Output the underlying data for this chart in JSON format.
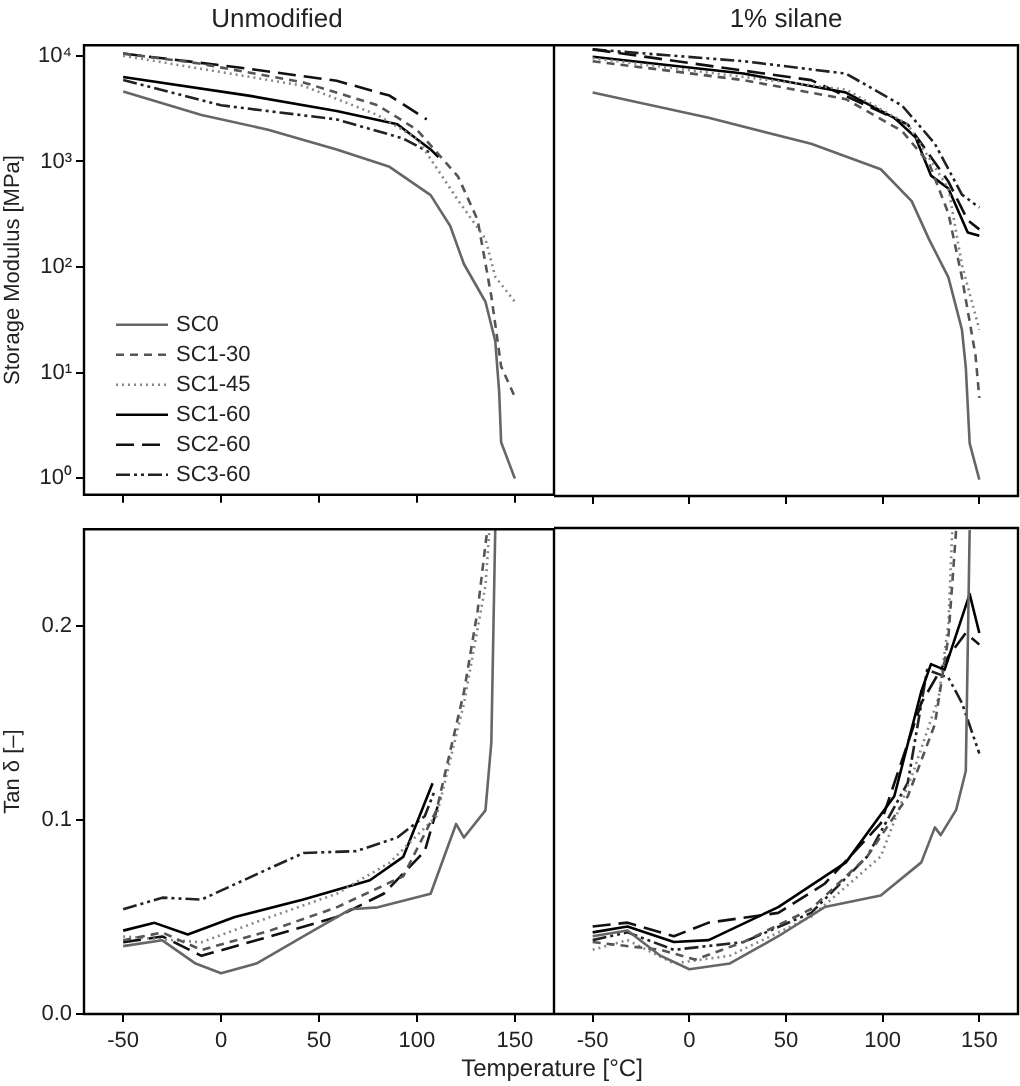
{
  "chart_data": [
    {
      "type": "line",
      "title": "Unmodified",
      "ylabel": "Storage Modulus [MPa]",
      "log": "y",
      "xlim": [
        -70,
        170
      ],
      "xticks": [
        -50,
        0,
        50,
        100,
        150
      ],
      "ylim": [
        0.7,
        12600
      ],
      "yticks": [
        {
          "value": 1,
          "label": "10⁰"
        },
        {
          "value": 10,
          "label": "10¹"
        },
        {
          "value": 100,
          "label": "10²"
        },
        {
          "value": 1000,
          "label": "10³"
        },
        {
          "value": 10000,
          "label": "10⁴"
        }
      ],
      "tick_labels": "y",
      "legend": "bottom left",
      "series": [
        {
          "name": "SC0",
          "color": "#666666",
          "line_style": "solid",
          "x": [
            -50,
            -10,
            24,
            59,
            86,
            107,
            117,
            124,
            135,
            140,
            142,
            143,
            150
          ],
          "values": [
            4600,
            2750,
            2000,
            1300,
            890,
            480,
            245,
            107,
            47,
            20,
            6.6,
            2.2,
            1.0
          ]
        },
        {
          "name": "SC1-30",
          "color": "#555555",
          "line_style": "dashed",
          "x": [
            -50,
            -12,
            42,
            80,
            100,
            121,
            131,
            138,
            143,
            150
          ],
          "values": [
            10500,
            8500,
            5600,
            3400,
            2000,
            720,
            280,
            53,
            11.5,
            5.9
          ]
        },
        {
          "name": "SC1-45",
          "color": "#888888",
          "line_style": "dotted",
          "x": [
            -50,
            42,
            80,
            100,
            121,
            135,
            140,
            150
          ],
          "values": [
            10000,
            5200,
            2750,
            1650,
            430,
            185,
            81,
            47
          ]
        },
        {
          "name": "SC1-60",
          "color": "#000000",
          "line_style": "solid",
          "x": [
            -50,
            14,
            59,
            90,
            107,
            111
          ],
          "values": [
            6300,
            4200,
            3000,
            2250,
            1300,
            1100
          ]
        },
        {
          "name": "SC2-60",
          "color": "#111111",
          "line_style": "dashed",
          "x": [
            -50,
            8,
            59,
            86,
            105
          ],
          "values": [
            10500,
            7800,
            5800,
            4200,
            2500
          ]
        },
        {
          "name": "SC3-60",
          "color": "#222222",
          "line_style": "dashed",
          "x": [
            -50,
            0,
            59,
            93,
            107
          ],
          "values": [
            5900,
            3400,
            2500,
            1650,
            1200
          ]
        }
      ]
    },
    {
      "type": "line",
      "title": "1% silane",
      "log": "y",
      "xlim": [
        -70,
        170
      ],
      "xticks": [
        -50,
        0,
        50,
        100,
        150
      ],
      "ylim": [
        0.7,
        12600
      ],
      "yticks": [
        {
          "value": 1,
          "label": null
        },
        {
          "value": 10,
          "label": null
        },
        {
          "value": 100,
          "label": null
        },
        {
          "value": 1000,
          "label": null
        },
        {
          "value": 10000,
          "label": null
        }
      ],
      "tick_labels": false,
      "series": [
        {
          "color": "#666666",
          "line_style": "solid",
          "x": [
            -50,
            10,
            63,
            99,
            115,
            124,
            134,
            141,
            143,
            145,
            150
          ],
          "values": [
            4500,
            2600,
            1480,
            850,
            425,
            185,
            81,
            26,
            11.5,
            2.2,
            1.0
          ]
        },
        {
          "color": "#555555",
          "line_style": "dashed",
          "x": [
            -50,
            28,
            81,
            110,
            124,
            134,
            141,
            148,
            150
          ],
          "values": [
            8900,
            5900,
            3900,
            1950,
            970,
            325,
            81,
            15,
            5.9
          ]
        },
        {
          "color": "#888888",
          "line_style": "dotted",
          "x": [
            -50,
            81,
            113,
            134,
            141,
            150
          ],
          "values": [
            9500,
            4800,
            2250,
            560,
            107,
            26
          ]
        },
        {
          "color": "#000000",
          "line_style": "solid",
          "x": [
            -50,
            28,
            81,
            106,
            117,
            125,
            134,
            144,
            150
          ],
          "values": [
            9800,
            6800,
            4500,
            2600,
            1700,
            740,
            560,
            215,
            200
          ]
        },
        {
          "color": "#111111",
          "line_style": "dashed",
          "x": [
            -50,
            63,
            113,
            134,
            144,
            150
          ],
          "values": [
            11500,
            5900,
            2250,
            650,
            280,
            230
          ]
        },
        {
          "color": "#222222",
          "line_style": "dashed",
          "x": [
            -50,
            28,
            81,
            110,
            127,
            141,
            150
          ],
          "values": [
            11500,
            8900,
            6800,
            3400,
            1480,
            490,
            370
          ]
        }
      ]
    },
    {
      "type": "line",
      "xlabel": "Temperature [°C]",
      "ylabel": "Tan δ [–]",
      "xlim": [
        -70,
        170
      ],
      "xticks": [
        -50,
        0,
        50,
        100,
        150
      ],
      "ylim": [
        0,
        0.25
      ],
      "yticks": [
        {
          "value": 0,
          "label": "0.0"
        },
        0.1,
        0.2
      ],
      "series": [
        {
          "color": "#666666",
          "line_style": "solid",
          "x": [
            -50,
            -30,
            -13,
            0,
            18,
            42,
            66,
            80,
            107,
            120,
            124,
            135,
            138,
            140
          ],
          "values": [
            0.035,
            0.038,
            0.026,
            0.021,
            0.026,
            0.04,
            0.054,
            0.055,
            0.062,
            0.098,
            0.091,
            0.105,
            0.14,
            0.25
          ]
        },
        {
          "color": "#555555",
          "line_style": "dashed",
          "x": [
            -50,
            -30,
            -10,
            25,
            59,
            93,
            110,
            124,
            131,
            135,
            136
          ],
          "values": [
            0.038,
            0.042,
            0.033,
            0.043,
            0.055,
            0.071,
            0.105,
            0.166,
            0.208,
            0.242,
            0.25
          ]
        },
        {
          "color": "#888888",
          "line_style": "dotted",
          "x": [
            -50,
            -10,
            25,
            59,
            86,
            110,
            124,
            135,
            137
          ],
          "values": [
            0.04,
            0.037,
            0.05,
            0.062,
            0.078,
            0.102,
            0.16,
            0.221,
            0.249
          ]
        },
        {
          "color": "#000000",
          "line_style": "solid",
          "x": [
            -50,
            -34,
            -17,
            7,
            42,
            76,
            93,
            108
          ],
          "values": [
            0.043,
            0.047,
            0.041,
            0.05,
            0.059,
            0.069,
            0.081,
            0.119
          ]
        },
        {
          "color": "#111111",
          "line_style": "dashed",
          "x": [
            -50,
            -30,
            -10,
            25,
            59,
            83,
            104,
            112
          ],
          "values": [
            0.037,
            0.04,
            0.03,
            0.04,
            0.05,
            0.062,
            0.084,
            0.112
          ]
        },
        {
          "color": "#222222",
          "line_style": "dashed",
          "x": [
            -50,
            -30,
            -10,
            18,
            42,
            69,
            90,
            104,
            109
          ],
          "values": [
            0.054,
            0.06,
            0.059,
            0.072,
            0.083,
            0.084,
            0.091,
            0.102,
            0.115
          ]
        }
      ]
    },
    {
      "type": "line",
      "xlim": [
        -70,
        170
      ],
      "xticks": [
        -50,
        0,
        50,
        100,
        150
      ],
      "ylim": [
        0,
        0.25
      ],
      "yticks": [
        0.0,
        0.1,
        0.2
      ],
      "tick_labels": "x",
      "series": [
        {
          "color": "#666666",
          "line_style": "solid",
          "x": [
            -50,
            -32,
            -15,
            0,
            21,
            46,
            70,
            99,
            120,
            127,
            130,
            138,
            143,
            145
          ],
          "values": [
            0.04,
            0.043,
            0.03,
            0.023,
            0.026,
            0.04,
            0.055,
            0.061,
            0.078,
            0.096,
            0.092,
            0.105,
            0.125,
            0.249
          ]
        },
        {
          "color": "#555555",
          "line_style": "dashed",
          "x": [
            -50,
            -15,
            3,
            28,
            63,
            92,
            113,
            127,
            134,
            138
          ],
          "values": [
            0.037,
            0.033,
            0.028,
            0.037,
            0.054,
            0.081,
            0.112,
            0.149,
            0.194,
            0.249
          ]
        },
        {
          "color": "#888888",
          "line_style": "dotted",
          "x": [
            -50,
            -32,
            -8,
            21,
            63,
            99,
            116,
            129,
            134,
            136
          ],
          "values": [
            0.033,
            0.038,
            0.026,
            0.03,
            0.05,
            0.081,
            0.125,
            0.163,
            0.201,
            0.249
          ]
        },
        {
          "color": "#000000",
          "line_style": "solid",
          "x": [
            -50,
            -32,
            -8,
            10,
            46,
            81,
            106,
            120,
            125,
            132,
            145,
            150
          ],
          "values": [
            0.042,
            0.045,
            0.037,
            0.038,
            0.055,
            0.078,
            0.112,
            0.166,
            0.18,
            0.177,
            0.216,
            0.196
          ]
        },
        {
          "color": "#111111",
          "line_style": "dashed",
          "x": [
            -50,
            -32,
            -8,
            10,
            46,
            70,
            99,
            120,
            134,
            143,
            150
          ],
          "values": [
            0.045,
            0.047,
            0.04,
            0.047,
            0.052,
            0.067,
            0.098,
            0.16,
            0.184,
            0.196,
            0.19
          ]
        },
        {
          "color": "#222222",
          "line_style": "dashed",
          "x": [
            -50,
            -32,
            -8,
            28,
            63,
            92,
            113,
            123,
            134,
            141,
            150
          ],
          "values": [
            0.038,
            0.042,
            0.033,
            0.037,
            0.052,
            0.081,
            0.119,
            0.177,
            0.173,
            0.16,
            0.134
          ]
        }
      ]
    }
  ]
}
